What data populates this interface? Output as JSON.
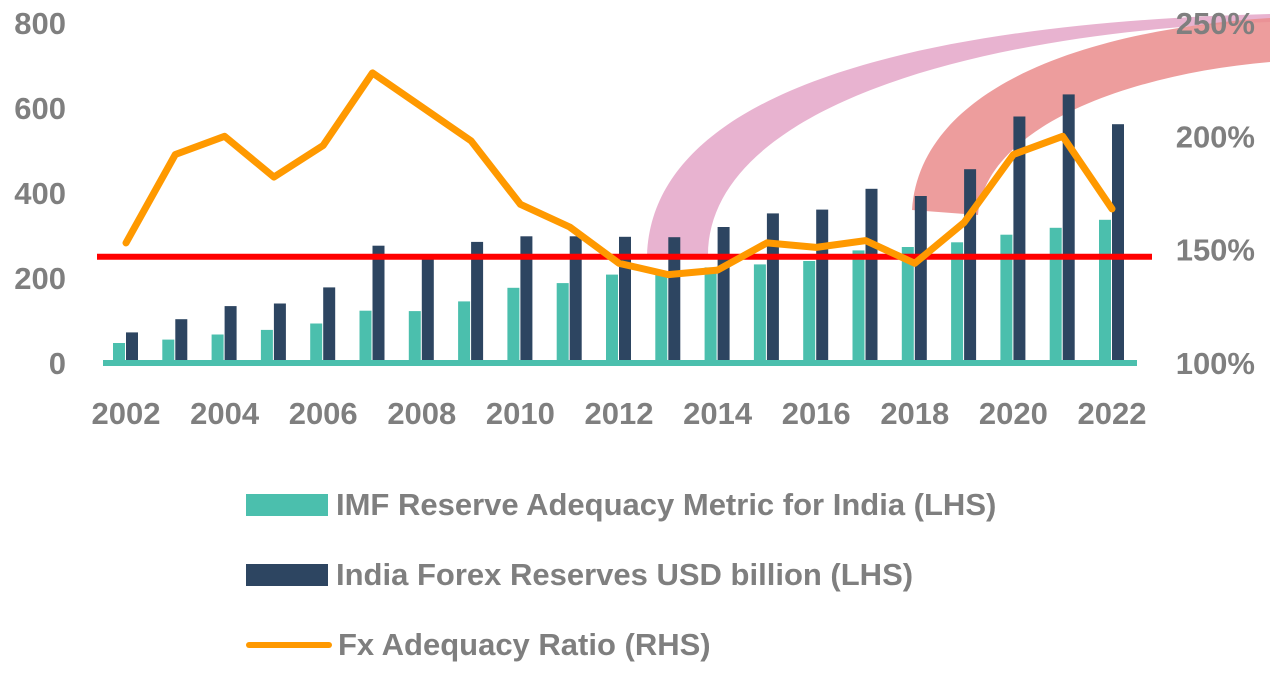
{
  "chart_data": {
    "type": "bar+line",
    "title": "",
    "categories": [
      "2002",
      "2003",
      "2004",
      "2005",
      "2006",
      "2007",
      "2008",
      "2009",
      "2010",
      "2011",
      "2012",
      "2013",
      "2014",
      "2015",
      "2016",
      "2017",
      "2018",
      "2019",
      "2020",
      "2021",
      "2022"
    ],
    "x_tick_labels": [
      "2002",
      "2004",
      "2006",
      "2008",
      "2010",
      "2012",
      "2014",
      "2016",
      "2018",
      "2020",
      "2022"
    ],
    "left_axis": {
      "ylim": [
        0,
        800
      ],
      "ticks": [
        "0",
        "200",
        "400",
        "600",
        "800"
      ]
    },
    "right_axis": {
      "ylim": [
        1.0,
        2.5
      ],
      "ticks": [
        "100%",
        "150%",
        "200%",
        "250%"
      ]
    },
    "series": [
      {
        "name": "IMF Reserve Adequacy Metric for India (LHS)",
        "type": "bar",
        "axis": "left",
        "color": "#4bbfad",
        "values": [
          47,
          55,
          67,
          78,
          93,
          123,
          122,
          145,
          177,
          188,
          208,
          212,
          225,
          232,
          240,
          265,
          273,
          284,
          302,
          318,
          337
        ]
      },
      {
        "name": "India Forex Reserves USD billion (LHS)",
        "type": "bar",
        "axis": "left",
        "color": "#2d4561",
        "values": [
          72,
          103,
          134,
          140,
          178,
          276,
          253,
          285,
          298,
          298,
          297,
          296,
          320,
          352,
          361,
          410,
          393,
          456,
          580,
          632,
          562
        ]
      },
      {
        "name": "Fx Adequacy Ratio (RHS)",
        "type": "line",
        "axis": "right",
        "color": "#ff9900",
        "values": [
          1.53,
          1.92,
          2.0,
          1.82,
          1.96,
          2.28,
          2.13,
          1.98,
          1.7,
          1.6,
          1.44,
          1.39,
          1.41,
          1.53,
          1.51,
          1.54,
          1.44,
          1.62,
          1.92,
          2.0,
          1.68
        ]
      }
    ],
    "reference_line": {
      "axis": "left",
      "value": 250,
      "color": "#ff0000"
    },
    "annotations": [
      {
        "type": "arc",
        "from_year": "2013",
        "to": "top-right",
        "color": "#e4a6c8"
      },
      {
        "type": "arc",
        "from_year": "2018",
        "to": "top-right",
        "color": "#ea8c8c"
      }
    ],
    "legend_position": "bottom"
  }
}
